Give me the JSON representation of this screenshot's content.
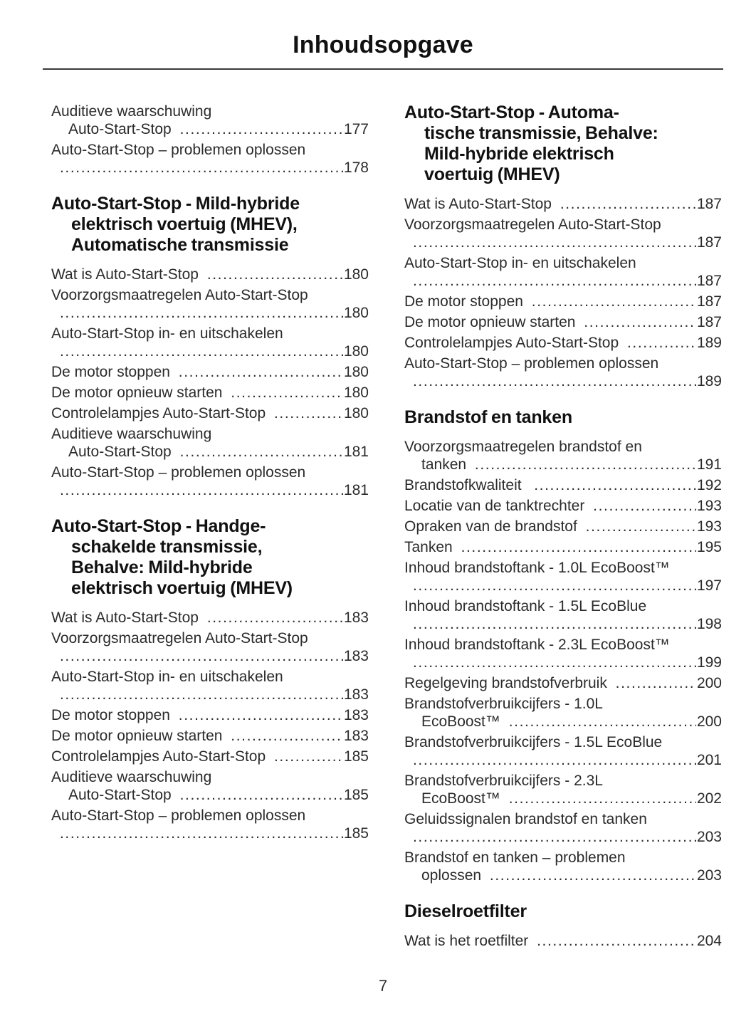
{
  "page": {
    "title": "Inhoudsopgave",
    "page_number": "7"
  },
  "colors": {
    "background": "#ffffff",
    "text": "#2b2b2b",
    "heading": "#111111",
    "rule": "#3a3a3a"
  },
  "columns": [
    {
      "name": "left",
      "blocks": [
        {
          "type": "entries",
          "items": [
            {
              "lines": [
                {
                  "t": "Auditieve waarschuwing"
                },
                {
                  "t": "Auto-Start-Stop ",
                  "i": 1,
                  "d": 1,
                  "p": "177"
                }
              ]
            },
            {
              "lines": [
                {
                  "t": "Auto-Start-Stop – problemen oplossen"
                },
                {
                  "t": "",
                  "i": 1,
                  "d": 1,
                  "p": "178"
                }
              ]
            }
          ]
        },
        {
          "type": "heading",
          "lines": [
            "Auto-Start-Stop - Mild-hybride",
            "elektrisch voertuig (MHEV),",
            "Automatische transmissie"
          ]
        },
        {
          "type": "entries",
          "items": [
            {
              "lines": [
                {
                  "t": "Wat is Auto-Start-Stop ",
                  "d": 1,
                  "p": "180"
                }
              ]
            },
            {
              "lines": [
                {
                  "t": "Voorzorgsmaatregelen Auto-Start-Stop"
                },
                {
                  "t": "",
                  "i": 1,
                  "d": 1,
                  "p": "180"
                }
              ]
            },
            {
              "lines": [
                {
                  "t": "Auto-Start-Stop in- en uitschakelen"
                },
                {
                  "t": "",
                  "i": 1,
                  "d": 1,
                  "p": "180"
                }
              ]
            },
            {
              "lines": [
                {
                  "t": "De motor stoppen ",
                  "d": 1,
                  "p": "180"
                }
              ]
            },
            {
              "lines": [
                {
                  "t": "De motor opnieuw starten ",
                  "d": 1,
                  "p": "180"
                }
              ]
            },
            {
              "lines": [
                {
                  "t": "Controlelampjes Auto-Start-Stop ",
                  "d": 1,
                  "p": "180"
                }
              ]
            },
            {
              "lines": [
                {
                  "t": "Auditieve waarschuwing"
                },
                {
                  "t": "Auto-Start-Stop ",
                  "i": 1,
                  "d": 1,
                  "p": "181"
                }
              ]
            },
            {
              "lines": [
                {
                  "t": "Auto-Start-Stop – problemen oplossen"
                },
                {
                  "t": "",
                  "i": 1,
                  "d": 1,
                  "p": "181"
                }
              ]
            }
          ]
        },
        {
          "type": "heading",
          "lines": [
            "Auto-Start-Stop - Handge-",
            "schakelde transmissie,",
            "Behalve: Mild-hybride",
            "elektrisch voertuig (MHEV)"
          ]
        },
        {
          "type": "entries",
          "items": [
            {
              "lines": [
                {
                  "t": "Wat is Auto-Start-Stop ",
                  "d": 1,
                  "p": "183"
                }
              ]
            },
            {
              "lines": [
                {
                  "t": "Voorzorgsmaatregelen Auto-Start-Stop"
                },
                {
                  "t": "",
                  "i": 1,
                  "d": 1,
                  "p": "183"
                }
              ]
            },
            {
              "lines": [
                {
                  "t": "Auto-Start-Stop in- en uitschakelen"
                },
                {
                  "t": "",
                  "i": 1,
                  "d": 1,
                  "p": "183"
                }
              ]
            },
            {
              "lines": [
                {
                  "t": "De motor stoppen ",
                  "d": 1,
                  "p": "183"
                }
              ]
            },
            {
              "lines": [
                {
                  "t": "De motor opnieuw starten ",
                  "d": 1,
                  "p": "183"
                }
              ]
            },
            {
              "lines": [
                {
                  "t": "Controlelampjes Auto-Start-Stop ",
                  "d": 1,
                  "p": "185"
                }
              ]
            },
            {
              "lines": [
                {
                  "t": "Auditieve waarschuwing"
                },
                {
                  "t": "Auto-Start-Stop ",
                  "i": 1,
                  "d": 1,
                  "p": "185"
                }
              ]
            },
            {
              "lines": [
                {
                  "t": "Auto-Start-Stop – problemen oplossen"
                },
                {
                  "t": "",
                  "i": 1,
                  "d": 1,
                  "p": "185"
                }
              ]
            }
          ]
        }
      ]
    },
    {
      "name": "right",
      "blocks": [
        {
          "type": "heading",
          "lines": [
            "Auto-Start-Stop - Automa-",
            "tische transmissie, Behalve:",
            "Mild-hybride elektrisch",
            "voertuig (MHEV)"
          ]
        },
        {
          "type": "entries",
          "items": [
            {
              "lines": [
                {
                  "t": "Wat is Auto-Start-Stop ",
                  "d": 1,
                  "p": "187"
                }
              ]
            },
            {
              "lines": [
                {
                  "t": "Voorzorgsmaatregelen Auto-Start-Stop"
                },
                {
                  "t": "",
                  "i": 1,
                  "d": 1,
                  "p": "187"
                }
              ]
            },
            {
              "lines": [
                {
                  "t": "Auto-Start-Stop in- en uitschakelen"
                },
                {
                  "t": "",
                  "i": 1,
                  "d": 1,
                  "p": "187"
                }
              ]
            },
            {
              "lines": [
                {
                  "t": "De motor stoppen ",
                  "d": 1,
                  "p": "187"
                }
              ]
            },
            {
              "lines": [
                {
                  "t": "De motor opnieuw starten ",
                  "d": 1,
                  "p": "187"
                }
              ]
            },
            {
              "lines": [
                {
                  "t": "Controlelampjes Auto-Start-Stop ",
                  "d": 1,
                  "p": "189"
                }
              ]
            },
            {
              "lines": [
                {
                  "t": "Auto-Start-Stop – problemen oplossen"
                },
                {
                  "t": "",
                  "i": 1,
                  "d": 1,
                  "p": "189"
                }
              ]
            }
          ]
        },
        {
          "type": "heading",
          "lines": [
            "Brandstof en tanken"
          ]
        },
        {
          "type": "entries",
          "items": [
            {
              "lines": [
                {
                  "t": "Voorzorgsmaatregelen brandstof en"
                },
                {
                  "t": "tanken ",
                  "i": 1,
                  "d": 1,
                  "p": "191"
                }
              ]
            },
            {
              "lines": [
                {
                  "t": "Brandstofkwaliteit  ",
                  "d": 1,
                  "p": "192"
                }
              ]
            },
            {
              "lines": [
                {
                  "t": "Locatie van de tanktrechter ",
                  "d": 1,
                  "p": "193"
                }
              ]
            },
            {
              "lines": [
                {
                  "t": "Opraken van de brandstof ",
                  "d": 1,
                  "p": "193"
                }
              ]
            },
            {
              "lines": [
                {
                  "t": "Tanken ",
                  "d": 1,
                  "p": "195"
                }
              ]
            },
            {
              "lines": [
                {
                  "t": "Inhoud brandstoftank - 1.0L EcoBoost™"
                },
                {
                  "t": "",
                  "i": 1,
                  "d": 1,
                  "p": "197"
                }
              ]
            },
            {
              "lines": [
                {
                  "t": "Inhoud brandstoftank - 1.5L EcoBlue"
                },
                {
                  "t": "",
                  "i": 1,
                  "d": 1,
                  "p": "198"
                }
              ]
            },
            {
              "lines": [
                {
                  "t": "Inhoud brandstoftank - 2.3L EcoBoost™"
                },
                {
                  "t": "",
                  "i": 1,
                  "d": 1,
                  "p": "199"
                }
              ]
            },
            {
              "lines": [
                {
                  "t": "Regelgeving brandstofverbruik ",
                  "d": 1,
                  "p": "200"
                }
              ]
            },
            {
              "lines": [
                {
                  "t": "Brandstofverbruikcijfers - 1.0L"
                },
                {
                  "t": "EcoBoost™ ",
                  "i": 1,
                  "d": 1,
                  "p": "200"
                }
              ]
            },
            {
              "lines": [
                {
                  "t": "Brandstofverbruikcijfers - 1.5L EcoBlue"
                },
                {
                  "t": "",
                  "i": 1,
                  "d": 1,
                  "p": "201"
                }
              ]
            },
            {
              "lines": [
                {
                  "t": "Brandstofverbruikcijfers - 2.3L"
                },
                {
                  "t": "EcoBoost™ ",
                  "i": 1,
                  "d": 1,
                  "p": "202"
                }
              ]
            },
            {
              "lines": [
                {
                  "t": "Geluidssignalen brandstof en tanken"
                },
                {
                  "t": "",
                  "i": 1,
                  "d": 1,
                  "p": "203"
                }
              ]
            },
            {
              "lines": [
                {
                  "t": "Brandstof en tanken – problemen"
                },
                {
                  "t": "oplossen ",
                  "i": 1,
                  "d": 1,
                  "p": "203"
                }
              ]
            }
          ]
        },
        {
          "type": "heading",
          "lines": [
            "Dieselroetfilter"
          ]
        },
        {
          "type": "entries",
          "items": [
            {
              "lines": [
                {
                  "t": "Wat is het roetfilter ",
                  "d": 1,
                  "p": "204"
                }
              ]
            }
          ]
        }
      ]
    }
  ]
}
